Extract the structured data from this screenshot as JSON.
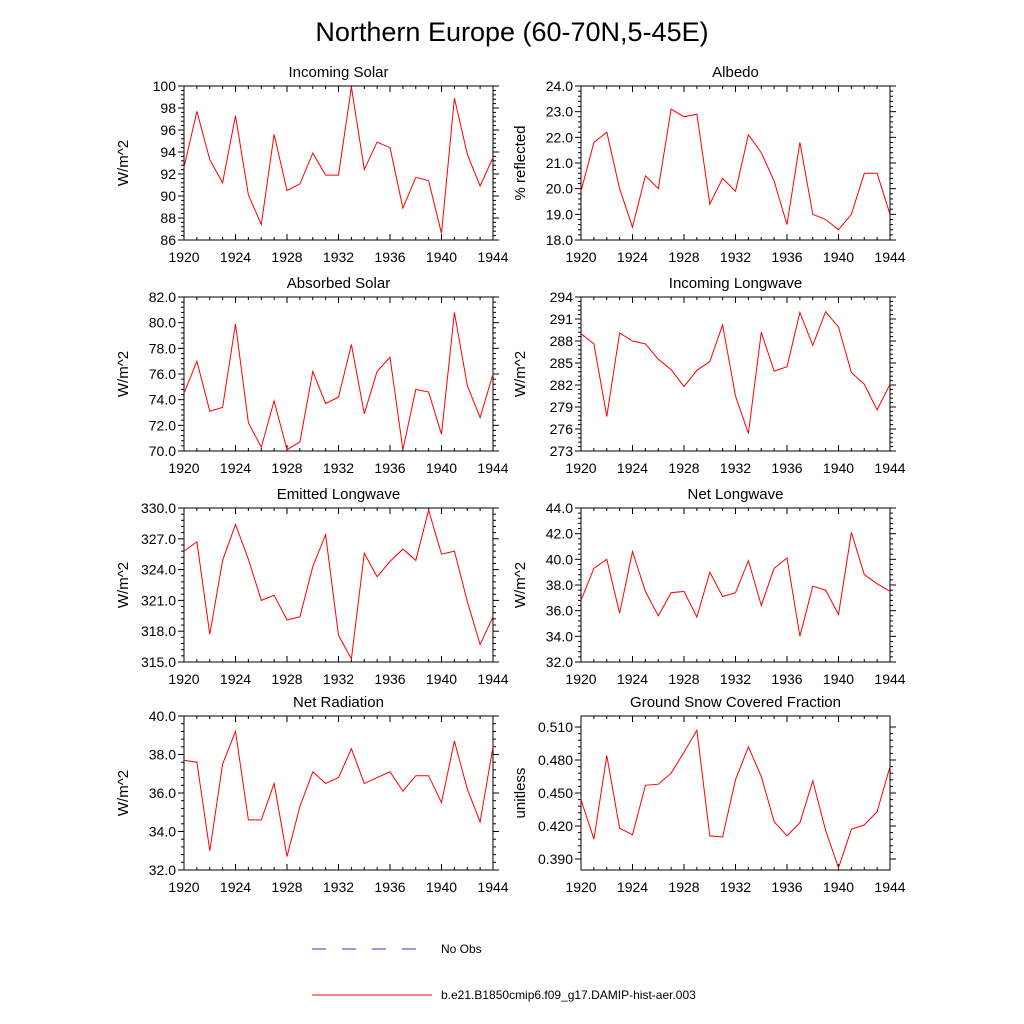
{
  "title": "Northern Europe (60-70N,5-45E)",
  "colors": {
    "model": "#ff0000",
    "obs": "#3333cc",
    "axis": "#000000"
  },
  "legend": {
    "obs_label": "No Obs",
    "model_label": "b.e21.B1850cmip6.f09_g17.DAMIP-hist-aer.003"
  },
  "chart_data": [
    {
      "type": "line",
      "title": "Incoming Solar",
      "ylabel": "W/m^2",
      "xlabel": "",
      "xlim": [
        1920,
        1944
      ],
      "ylim": [
        86,
        100
      ],
      "xticks": [
        1920,
        1924,
        1928,
        1932,
        1936,
        1940,
        1944
      ],
      "xtick_labels": [
        "1920",
        "1924",
        "1928",
        "1932",
        "1936",
        "1940",
        "1944"
      ],
      "yticks": [
        86,
        88,
        90,
        92,
        94,
        96,
        98,
        100
      ],
      "ytick_labels": [
        "86",
        "88",
        "90",
        "92",
        "94",
        "96",
        "98",
        "100"
      ],
      "grid": false,
      "series": [
        {
          "name": "b.e21.B1850cmip6.f09_g17.DAMIP-hist-aer.003",
          "x": [
            1920,
            1921,
            1922,
            1923,
            1924,
            1925,
            1926,
            1927,
            1928,
            1929,
            1930,
            1931,
            1932,
            1933,
            1934,
            1935,
            1936,
            1937,
            1938,
            1939,
            1940,
            1941,
            1942,
            1943,
            1944
          ],
          "y": [
            92.6,
            97.7,
            93.3,
            91.2,
            97.3,
            90.1,
            87.4,
            95.6,
            90.5,
            91.1,
            93.9,
            91.9,
            91.9,
            99.9,
            92.4,
            94.9,
            94.4,
            88.9,
            91.7,
            91.4,
            86.6,
            98.9,
            93.8,
            90.9,
            93.5
          ]
        }
      ]
    },
    {
      "type": "line",
      "title": "Albedo",
      "ylabel": "% reflected",
      "xlabel": "",
      "xlim": [
        1920,
        1944
      ],
      "ylim": [
        18.0,
        24.0
      ],
      "xticks": [
        1920,
        1924,
        1928,
        1932,
        1936,
        1940,
        1944
      ],
      "xtick_labels": [
        "1920",
        "1924",
        "1928",
        "1932",
        "1936",
        "1940",
        "1944"
      ],
      "yticks": [
        18,
        19,
        20,
        21,
        22,
        23,
        24
      ],
      "ytick_labels": [
        "18.0",
        "19.0",
        "20.0",
        "21.0",
        "22.0",
        "23.0",
        "24.0"
      ],
      "grid": false,
      "series": [
        {
          "name": "b.e21.B1850cmip6.f09_g17.DAMIP-hist-aer.003",
          "x": [
            1920,
            1921,
            1922,
            1923,
            1924,
            1925,
            1926,
            1927,
            1928,
            1929,
            1930,
            1931,
            1932,
            1933,
            1934,
            1935,
            1936,
            1937,
            1938,
            1939,
            1940,
            1941,
            1942,
            1943,
            1944
          ],
          "y": [
            19.9,
            21.8,
            22.2,
            20.0,
            18.5,
            20.5,
            20.0,
            23.1,
            22.8,
            22.9,
            19.4,
            20.4,
            19.9,
            22.1,
            21.4,
            20.3,
            18.6,
            21.8,
            19.0,
            18.8,
            18.4,
            19.0,
            20.6,
            20.6,
            19.0
          ]
        }
      ]
    },
    {
      "type": "line",
      "title": "Absorbed Solar",
      "ylabel": "W/m^2",
      "xlabel": "",
      "xlim": [
        1920,
        1944
      ],
      "ylim": [
        70.0,
        82.0
      ],
      "xticks": [
        1920,
        1924,
        1928,
        1932,
        1936,
        1940,
        1944
      ],
      "xtick_labels": [
        "1920",
        "1924",
        "1928",
        "1932",
        "1936",
        "1940",
        "1944"
      ],
      "yticks": [
        70,
        72,
        74,
        76,
        78,
        80,
        82
      ],
      "ytick_labels": [
        "70.0",
        "72.0",
        "74.0",
        "76.0",
        "78.0",
        "80.0",
        "82.0"
      ],
      "grid": false,
      "series": [
        {
          "name": "b.e21.B1850cmip6.f09_g17.DAMIP-hist-aer.003",
          "x": [
            1920,
            1921,
            1922,
            1923,
            1924,
            1925,
            1926,
            1927,
            1928,
            1929,
            1930,
            1931,
            1932,
            1933,
            1934,
            1935,
            1936,
            1937,
            1938,
            1939,
            1940,
            1941,
            1942,
            1943,
            1944
          ],
          "y": [
            74.5,
            77.0,
            73.1,
            73.4,
            79.9,
            72.2,
            70.3,
            73.9,
            70.1,
            70.7,
            76.2,
            73.7,
            74.2,
            78.3,
            72.9,
            76.2,
            77.3,
            70.1,
            74.8,
            74.6,
            71.3,
            80.8,
            75.1,
            72.6,
            76.0
          ]
        }
      ]
    },
    {
      "type": "line",
      "title": "Incoming Longwave",
      "ylabel": "W/m^2",
      "xlabel": "",
      "xlim": [
        1920,
        1944
      ],
      "ylim": [
        273,
        294
      ],
      "xticks": [
        1920,
        1924,
        1928,
        1932,
        1936,
        1940,
        1944
      ],
      "xtick_labels": [
        "1920",
        "1924",
        "1928",
        "1932",
        "1936",
        "1940",
        "1944"
      ],
      "yticks": [
        273,
        276,
        279,
        282,
        285,
        288,
        291,
        294
      ],
      "ytick_labels": [
        "273",
        "276",
        "279",
        "282",
        "285",
        "288",
        "291",
        "294"
      ],
      "grid": false,
      "series": [
        {
          "name": "b.e21.B1850cmip6.f09_g17.DAMIP-hist-aer.003",
          "x": [
            1920,
            1921,
            1922,
            1923,
            1924,
            1925,
            1926,
            1927,
            1928,
            1929,
            1930,
            1931,
            1932,
            1933,
            1934,
            1935,
            1936,
            1937,
            1938,
            1939,
            1940,
            1941,
            1942,
            1943,
            1944
          ],
          "y": [
            289.0,
            287.6,
            277.7,
            289.1,
            288.0,
            287.6,
            285.5,
            284.1,
            281.8,
            284.0,
            285.2,
            290.2,
            280.5,
            275.4,
            289.2,
            283.9,
            284.5,
            291.9,
            287.4,
            292.0,
            289.9,
            283.7,
            282.1,
            278.6,
            282.1
          ]
        }
      ]
    },
    {
      "type": "line",
      "title": "Emitted Longwave",
      "ylabel": "W/m^2",
      "xlabel": "",
      "xlim": [
        1920,
        1944
      ],
      "ylim": [
        315.0,
        330.0
      ],
      "xticks": [
        1920,
        1924,
        1928,
        1932,
        1936,
        1940,
        1944
      ],
      "xtick_labels": [
        "1920",
        "1924",
        "1928",
        "1932",
        "1936",
        "1940",
        "1944"
      ],
      "yticks": [
        315,
        318,
        321,
        324,
        327,
        330
      ],
      "ytick_labels": [
        "315.0",
        "318.0",
        "321.0",
        "324.0",
        "327.0",
        "330.0"
      ],
      "grid": false,
      "series": [
        {
          "name": "b.e21.B1850cmip6.f09_g17.DAMIP-hist-aer.003",
          "x": [
            1920,
            1921,
            1922,
            1923,
            1924,
            1925,
            1926,
            1927,
            1928,
            1929,
            1930,
            1931,
            1932,
            1933,
            1934,
            1935,
            1936,
            1937,
            1938,
            1939,
            1940,
            1941,
            1942,
            1943,
            1944
          ],
          "y": [
            325.8,
            326.7,
            317.7,
            324.9,
            328.4,
            325.0,
            321.0,
            321.5,
            319.1,
            319.4,
            324.3,
            327.4,
            317.6,
            315.3,
            325.6,
            323.3,
            324.8,
            326.0,
            324.9,
            329.8,
            325.5,
            325.8,
            320.9,
            316.7,
            319.4
          ]
        }
      ]
    },
    {
      "type": "line",
      "title": "Net Longwave",
      "ylabel": "W/m^2",
      "xlabel": "",
      "xlim": [
        1920,
        1944
      ],
      "ylim": [
        32.0,
        44.0
      ],
      "xticks": [
        1920,
        1924,
        1928,
        1932,
        1936,
        1940,
        1944
      ],
      "xtick_labels": [
        "1920",
        "1924",
        "1928",
        "1932",
        "1936",
        "1940",
        "1944"
      ],
      "yticks": [
        32,
        34,
        36,
        38,
        40,
        42,
        44
      ],
      "ytick_labels": [
        "32.0",
        "34.0",
        "36.0",
        "38.0",
        "40.0",
        "42.0",
        "44.0"
      ],
      "grid": false,
      "series": [
        {
          "name": "b.e21.B1850cmip6.f09_g17.DAMIP-hist-aer.003",
          "x": [
            1920,
            1921,
            1922,
            1923,
            1924,
            1925,
            1926,
            1927,
            1928,
            1929,
            1930,
            1931,
            1932,
            1933,
            1934,
            1935,
            1936,
            1937,
            1938,
            1939,
            1940,
            1941,
            1942,
            1943,
            1944
          ],
          "y": [
            36.8,
            39.3,
            40.0,
            35.8,
            40.6,
            37.5,
            35.6,
            37.4,
            37.5,
            35.5,
            39.0,
            37.1,
            37.4,
            39.9,
            36.4,
            39.3,
            40.1,
            34.0,
            37.9,
            37.6,
            35.7,
            42.1,
            38.8,
            38.1,
            37.5
          ]
        }
      ]
    },
    {
      "type": "line",
      "title": "Net Radiation",
      "ylabel": "W/m^2",
      "xlabel": "",
      "xlim": [
        1920,
        1944
      ],
      "ylim": [
        32.0,
        40.0
      ],
      "xticks": [
        1920,
        1924,
        1928,
        1932,
        1936,
        1940,
        1944
      ],
      "xtick_labels": [
        "1920",
        "1924",
        "1928",
        "1932",
        "1936",
        "1940",
        "1944"
      ],
      "yticks": [
        32,
        34,
        36,
        38,
        40
      ],
      "ytick_labels": [
        "32.0",
        "34.0",
        "36.0",
        "38.0",
        "40.0"
      ],
      "grid": false,
      "series": [
        {
          "name": "b.e21.B1850cmip6.f09_g17.DAMIP-hist-aer.003",
          "x": [
            1920,
            1921,
            1922,
            1923,
            1924,
            1925,
            1926,
            1927,
            1928,
            1929,
            1930,
            1931,
            1932,
            1933,
            1934,
            1935,
            1936,
            1937,
            1938,
            1939,
            1940,
            1941,
            1942,
            1943,
            1944
          ],
          "y": [
            37.7,
            37.6,
            33.0,
            37.5,
            39.2,
            34.6,
            34.6,
            36.5,
            32.7,
            35.3,
            37.1,
            36.5,
            36.8,
            38.3,
            36.5,
            36.8,
            37.1,
            36.1,
            36.9,
            36.9,
            35.5,
            38.7,
            36.2,
            34.5,
            38.4
          ]
        }
      ]
    },
    {
      "type": "line",
      "title": "Ground Snow Covered Fraction",
      "ylabel": "unitless",
      "xlabel": "",
      "xlim": [
        1920,
        1944
      ],
      "ylim": [
        0.38,
        0.52
      ],
      "xticks": [
        1920,
        1924,
        1928,
        1932,
        1936,
        1940,
        1944
      ],
      "xtick_labels": [
        "1920",
        "1924",
        "1928",
        "1932",
        "1936",
        "1940",
        "1944"
      ],
      "yticks": [
        0.39,
        0.42,
        0.45,
        0.48,
        0.51
      ],
      "ytick_labels": [
        "0.390",
        "0.420",
        "0.450",
        "0.480",
        "0.510"
      ],
      "grid": false,
      "series": [
        {
          "name": "b.e21.B1850cmip6.f09_g17.DAMIP-hist-aer.003",
          "x": [
            1920,
            1921,
            1922,
            1923,
            1924,
            1925,
            1926,
            1927,
            1928,
            1929,
            1930,
            1931,
            1932,
            1933,
            1934,
            1935,
            1936,
            1937,
            1938,
            1939,
            1940,
            1941,
            1942,
            1943,
            1944
          ],
          "y": [
            0.444,
            0.408,
            0.484,
            0.418,
            0.412,
            0.457,
            0.458,
            0.468,
            0.487,
            0.507,
            0.411,
            0.41,
            0.462,
            0.492,
            0.465,
            0.424,
            0.411,
            0.423,
            0.461,
            0.416,
            0.382,
            0.417,
            0.421,
            0.433,
            0.474
          ]
        }
      ]
    }
  ]
}
